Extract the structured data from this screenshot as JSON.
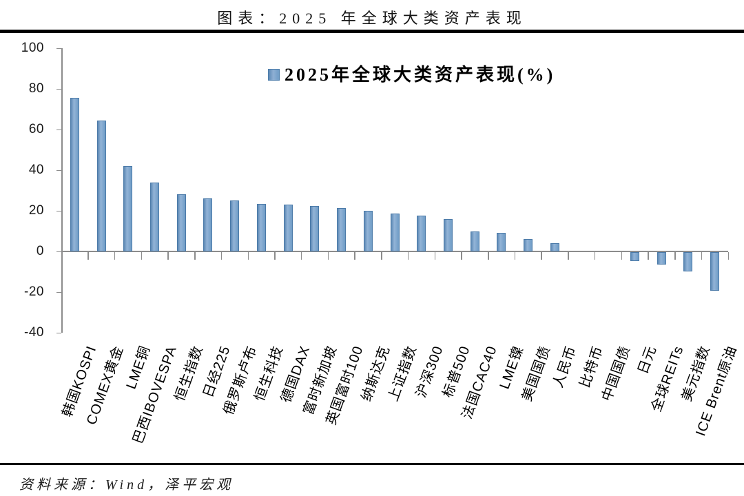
{
  "page_title": "图表：2025 年全球大类资产表现",
  "footer": {
    "source": "资料来源：Wind，泽平宏观"
  },
  "legend": {
    "label": "2025年全球大类资产表现(%)"
  },
  "colors": {
    "bar_fill_mid": "#8fb0d4",
    "bar_fill_edge": "#5c88b4",
    "bar_border": "#4b7aa8",
    "axis": "#8c8c8c",
    "text": "#000000",
    "rule": "#000000"
  },
  "chart_data": {
    "type": "bar",
    "title": "2025年全球大类资产表现(%)",
    "xlabel": "",
    "ylabel": "",
    "ylim": [
      -40,
      100
    ],
    "yticks": [
      100,
      80,
      60,
      40,
      20,
      0,
      -20,
      -40
    ],
    "grid": false,
    "legend_position": "top-center",
    "categories": [
      "韩国KOSPI",
      "COMEX黄金",
      "LME铜",
      "巴西IBOVESPA",
      "恒生指数",
      "日经225",
      "俄罗斯卢布",
      "恒生科技",
      "德国DAX",
      "富时新加坡",
      "英国富时100",
      "纳斯达克",
      "上证指数",
      "沪深300",
      "标普500",
      "法国CAC40",
      "LME镍",
      "美国国债",
      "人民币",
      "比特币",
      "中国国债",
      "日元",
      "全球REITs",
      "美元指数",
      "ICE Brent原油"
    ],
    "values": [
      75.5,
      64.5,
      42,
      34,
      28,
      26,
      25,
      23.5,
      23,
      22.5,
      21.5,
      20,
      18.5,
      17.5,
      16,
      10,
      9,
      6,
      4,
      0,
      0,
      -4.5,
      -6,
      -9.5,
      -19
    ]
  }
}
